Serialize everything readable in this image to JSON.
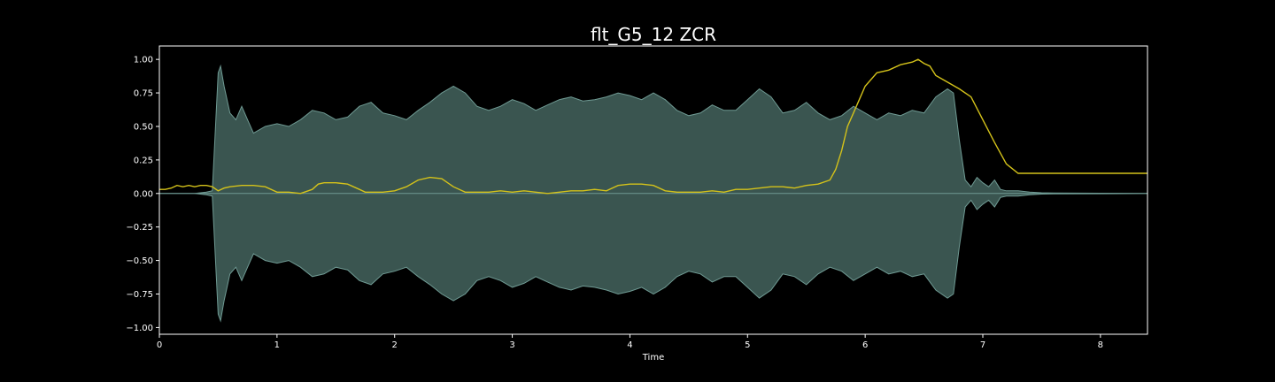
{
  "chart_data": {
    "type": "area",
    "title": "flt_G5_12 ZCR",
    "xlabel": "Time",
    "ylabel": "",
    "xlim": [
      0,
      8.4
    ],
    "ylim": [
      -1.05,
      1.1
    ],
    "x_ticks": [
      "0",
      "1",
      "2",
      "3",
      "4",
      "5",
      "6",
      "7",
      "8"
    ],
    "x_tick_values": [
      0,
      1,
      2,
      3,
      4,
      5,
      6,
      7,
      8
    ],
    "y_ticks": [
      "1.00",
      "0.75",
      "0.50",
      "0.25",
      "0.00",
      "−0.25",
      "−0.50",
      "−0.75",
      "−1.00"
    ],
    "y_tick_values": [
      1.0,
      0.75,
      0.5,
      0.25,
      0.0,
      -0.25,
      -0.5,
      -0.75,
      -1.0
    ],
    "grid": false,
    "colors": {
      "background": "#000000",
      "axes": "#ffffff",
      "waveform_fill": "#3a5550",
      "waveform_edge": "#6f9a93",
      "zcr_line": "#d4c21a"
    },
    "series": [
      {
        "kind": "waveform-envelope",
        "x": [
          0,
          0.3,
          0.4,
          0.45,
          0.5,
          0.52,
          0.55,
          0.6,
          0.65,
          0.7,
          0.75,
          0.8,
          0.9,
          1.0,
          1.1,
          1.2,
          1.3,
          1.4,
          1.5,
          1.6,
          1.7,
          1.8,
          1.9,
          2.0,
          2.1,
          2.2,
          2.3,
          2.4,
          2.5,
          2.6,
          2.7,
          2.8,
          2.9,
          3.0,
          3.1,
          3.2,
          3.3,
          3.4,
          3.5,
          3.6,
          3.7,
          3.8,
          3.9,
          4.0,
          4.1,
          4.2,
          4.3,
          4.4,
          4.5,
          4.6,
          4.7,
          4.8,
          4.9,
          5.0,
          5.1,
          5.2,
          5.3,
          5.4,
          5.5,
          5.6,
          5.7,
          5.8,
          5.9,
          6.0,
          6.1,
          6.2,
          6.3,
          6.4,
          6.5,
          6.6,
          6.7,
          6.75,
          6.8,
          6.85,
          6.9,
          6.95,
          7.0,
          7.05,
          7.1,
          7.15,
          7.2,
          7.3,
          7.4,
          7.5,
          7.6,
          8.0,
          8.4
        ],
        "values": [
          0.0,
          0.0,
          0.01,
          0.02,
          0.9,
          0.95,
          0.8,
          0.6,
          0.55,
          0.65,
          0.55,
          0.45,
          0.5,
          0.52,
          0.5,
          0.55,
          0.62,
          0.6,
          0.55,
          0.57,
          0.65,
          0.68,
          0.6,
          0.58,
          0.55,
          0.62,
          0.68,
          0.75,
          0.8,
          0.75,
          0.65,
          0.62,
          0.65,
          0.7,
          0.67,
          0.62,
          0.66,
          0.7,
          0.72,
          0.69,
          0.7,
          0.72,
          0.75,
          0.73,
          0.7,
          0.75,
          0.7,
          0.62,
          0.58,
          0.6,
          0.66,
          0.62,
          0.62,
          0.7,
          0.78,
          0.72,
          0.6,
          0.62,
          0.68,
          0.6,
          0.55,
          0.58,
          0.65,
          0.6,
          0.55,
          0.6,
          0.58,
          0.62,
          0.6,
          0.72,
          0.78,
          0.75,
          0.4,
          0.1,
          0.05,
          0.12,
          0.08,
          0.05,
          0.1,
          0.03,
          0.02,
          0.02,
          0.01,
          0.005,
          0.003,
          0.002,
          0.0
        ]
      },
      {
        "kind": "zcr-line",
        "x": [
          0,
          0.05,
          0.1,
          0.15,
          0.2,
          0.25,
          0.3,
          0.35,
          0.4,
          0.45,
          0.5,
          0.55,
          0.6,
          0.7,
          0.8,
          0.9,
          1.0,
          1.1,
          1.2,
          1.3,
          1.35,
          1.4,
          1.5,
          1.6,
          1.7,
          1.75,
          1.8,
          1.9,
          2.0,
          2.1,
          2.2,
          2.3,
          2.4,
          2.5,
          2.6,
          2.7,
          2.8,
          2.9,
          3.0,
          3.1,
          3.2,
          3.3,
          3.4,
          3.5,
          3.6,
          3.7,
          3.8,
          3.9,
          4.0,
          4.1,
          4.2,
          4.3,
          4.4,
          4.5,
          4.6,
          4.7,
          4.8,
          4.9,
          5.0,
          5.1,
          5.2,
          5.3,
          5.4,
          5.5,
          5.6,
          5.7,
          5.75,
          5.8,
          5.85,
          5.9,
          5.95,
          6.0,
          6.1,
          6.2,
          6.3,
          6.4,
          6.45,
          6.5,
          6.55,
          6.6,
          6.7,
          6.8,
          6.9,
          7.0,
          7.1,
          7.2,
          7.3,
          7.4,
          7.5,
          8.0,
          8.4
        ],
        "values": [
          0.03,
          0.03,
          0.04,
          0.06,
          0.05,
          0.06,
          0.05,
          0.06,
          0.06,
          0.05,
          0.02,
          0.04,
          0.05,
          0.06,
          0.06,
          0.05,
          0.01,
          0.01,
          0.0,
          0.03,
          0.07,
          0.08,
          0.08,
          0.07,
          0.03,
          0.01,
          0.01,
          0.01,
          0.02,
          0.05,
          0.1,
          0.12,
          0.11,
          0.05,
          0.01,
          0.01,
          0.01,
          0.02,
          0.01,
          0.02,
          0.01,
          0.0,
          0.01,
          0.02,
          0.02,
          0.03,
          0.02,
          0.06,
          0.07,
          0.07,
          0.06,
          0.02,
          0.01,
          0.01,
          0.01,
          0.02,
          0.01,
          0.03,
          0.03,
          0.04,
          0.05,
          0.05,
          0.04,
          0.06,
          0.07,
          0.1,
          0.18,
          0.32,
          0.5,
          0.6,
          0.7,
          0.8,
          0.9,
          0.92,
          0.96,
          0.98,
          1.0,
          0.97,
          0.95,
          0.88,
          0.83,
          0.78,
          0.72,
          0.55,
          0.38,
          0.22,
          0.15,
          0.15,
          0.15,
          0.15,
          0.15
        ]
      }
    ]
  }
}
